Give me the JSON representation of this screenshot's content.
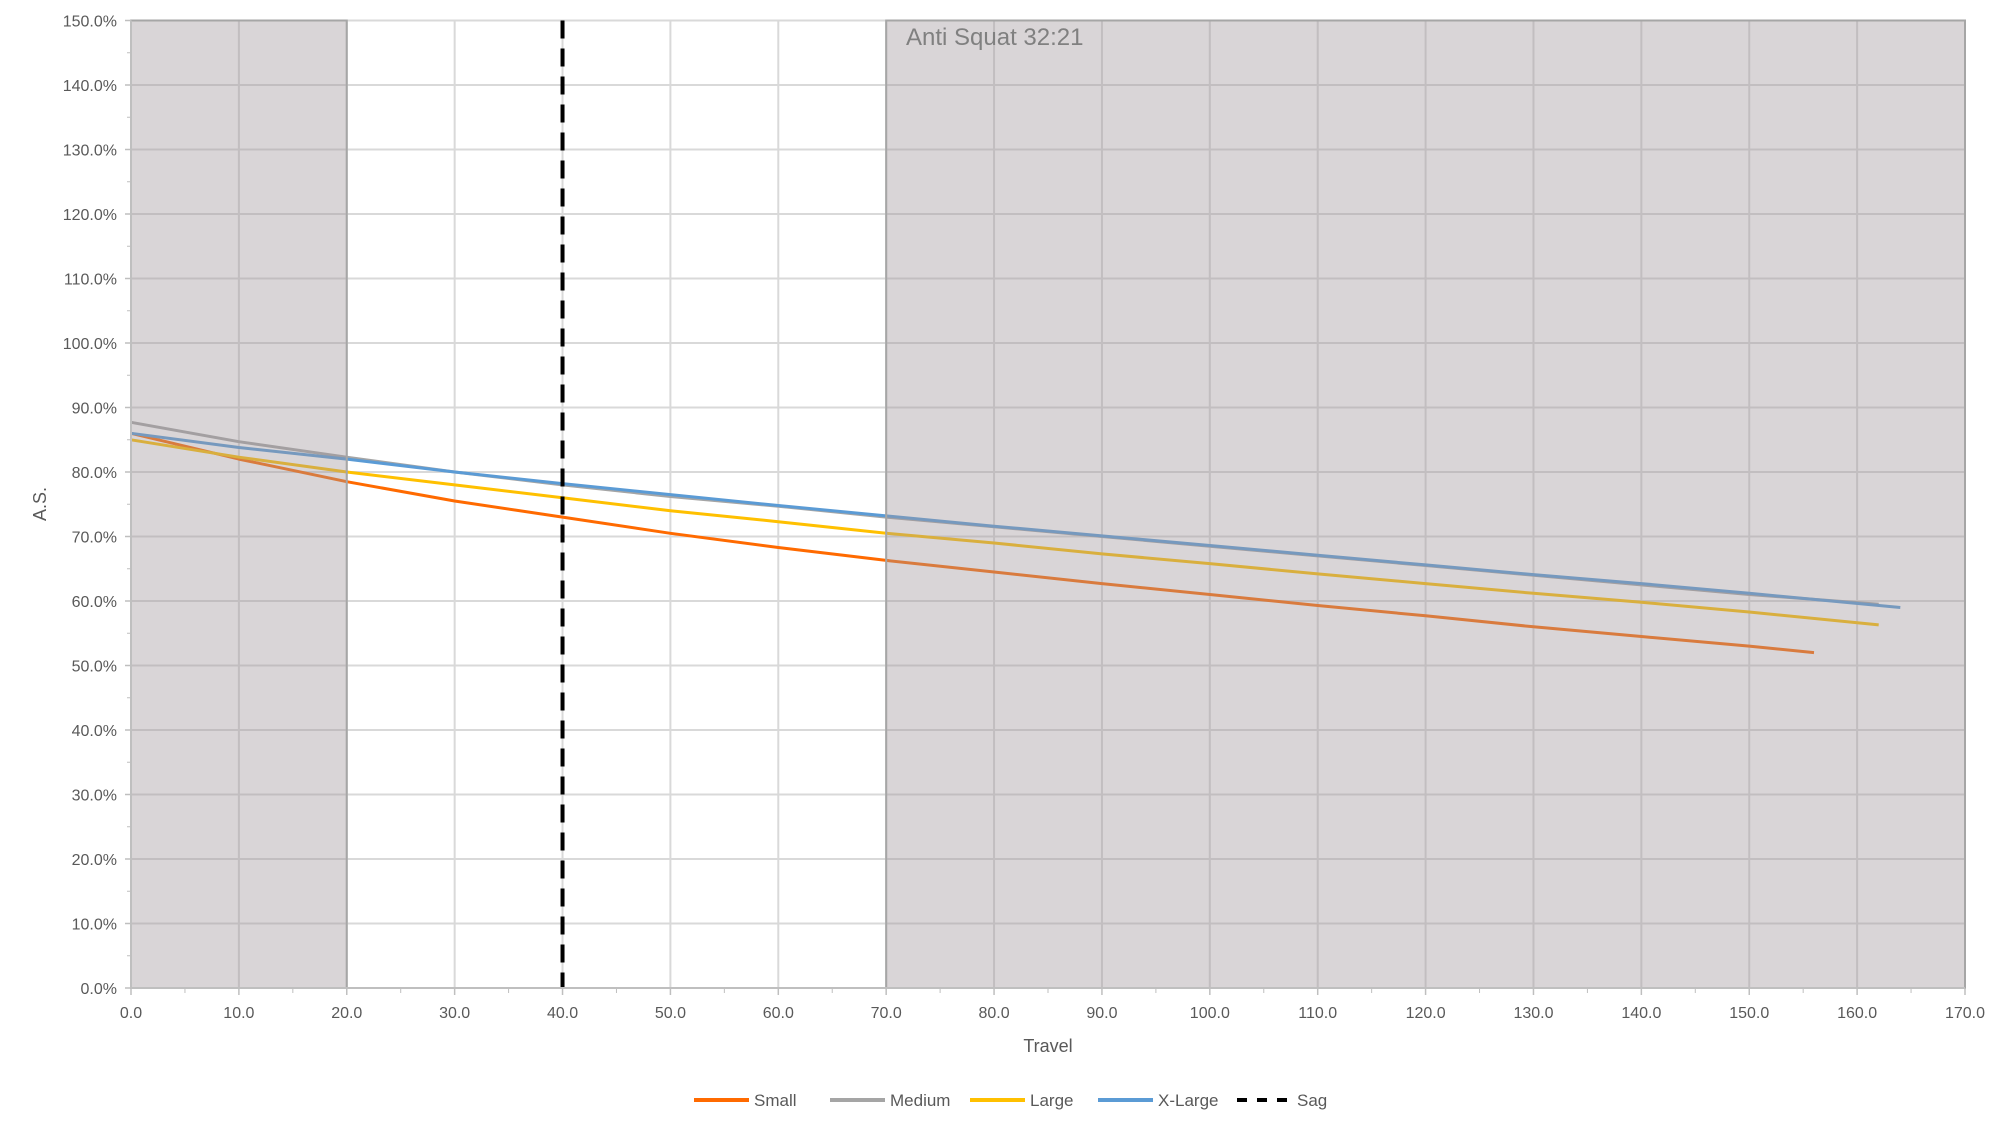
{
  "chart_data": {
    "type": "line",
    "title": "",
    "xlabel": "Travel",
    "ylabel": "A.S.",
    "xlim": [
      0,
      170
    ],
    "ylim": [
      0,
      150
    ],
    "x_ticks": [
      "0.0",
      "10.0",
      "20.0",
      "30.0",
      "40.0",
      "50.0",
      "60.0",
      "70.0",
      "80.0",
      "90.0",
      "100.0",
      "110.0",
      "120.0",
      "130.0",
      "140.0",
      "150.0",
      "160.0",
      "170.0"
    ],
    "y_ticks": [
      "0.0%",
      "10.0%",
      "20.0%",
      "30.0%",
      "40.0%",
      "50.0%",
      "60.0%",
      "70.0%",
      "80.0%",
      "90.0%",
      "100.0%",
      "110.0%",
      "120.0%",
      "130.0%",
      "140.0%",
      "150.0%"
    ],
    "grid": true,
    "legend_position": "bottom",
    "annotation": "Anti Squat 32:21",
    "shaded_ranges": [
      [
        0,
        20
      ],
      [
        70,
        170
      ]
    ],
    "sag": {
      "name": "Sag",
      "x": 40,
      "color": "#000000",
      "style": "dashed"
    },
    "series": [
      {
        "name": "Small",
        "color": "#FF6A00",
        "x": [
          0,
          10,
          20,
          30,
          40,
          50,
          60,
          70,
          80,
          90,
          100,
          110,
          120,
          130,
          140,
          150,
          156
        ],
        "y": [
          86,
          82,
          78.5,
          75.5,
          73,
          70.5,
          68.3,
          66.3,
          64.5,
          62.7,
          61,
          59.3,
          57.7,
          56,
          54.5,
          53,
          52
        ]
      },
      {
        "name": "Medium",
        "color": "#A5A5A5",
        "x": [
          0,
          10,
          20,
          30,
          40,
          50,
          60,
          70,
          80,
          90,
          100,
          110,
          120,
          130,
          140,
          150,
          162
        ],
        "y": [
          87.7,
          84.7,
          82.3,
          80,
          78,
          76.2,
          74.7,
          73,
          71.5,
          70,
          68.5,
          67,
          65.5,
          64,
          62.5,
          61,
          59.5
        ]
      },
      {
        "name": "Large",
        "color": "#FFC000",
        "x": [
          0,
          10,
          20,
          30,
          40,
          50,
          60,
          70,
          80,
          90,
          100,
          110,
          120,
          130,
          140,
          150,
          162
        ],
        "y": [
          85,
          82.3,
          80,
          78,
          76,
          74,
          72.3,
          70.5,
          69,
          67.3,
          65.8,
          64.2,
          62.7,
          61.2,
          59.8,
          58.3,
          56.3
        ]
      },
      {
        "name": "X-Large",
        "color": "#5B9BD5",
        "x": [
          0,
          10,
          20,
          30,
          40,
          50,
          60,
          70,
          80,
          90,
          100,
          110,
          120,
          130,
          140,
          150,
          164
        ],
        "y": [
          86,
          83.8,
          82,
          80,
          78.2,
          76.5,
          74.8,
          73.2,
          71.6,
          70.1,
          68.6,
          67.1,
          65.6,
          64.1,
          62.7,
          61.2,
          59
        ]
      }
    ]
  }
}
